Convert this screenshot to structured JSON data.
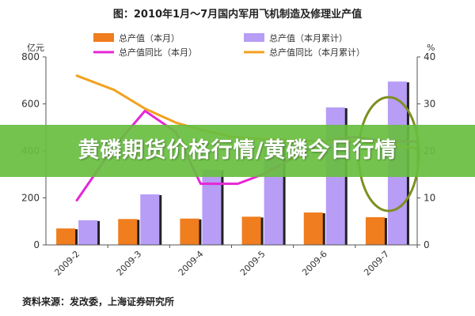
{
  "banner": {
    "text": "黄磷期货价格行情/黄磷今日行情"
  },
  "chart_data": {
    "type": "bar",
    "title": "图：2010年1月～7月国内军用飞机制造及修理业产值",
    "source": "资料来源：发改委，上海证券研究所",
    "ylabel_left": "亿元",
    "ylabel_right": "%",
    "ylim_left": [
      0,
      800
    ],
    "ylim_right": [
      0,
      40
    ],
    "yticks_left": [
      0,
      200,
      400,
      600,
      800
    ],
    "yticks_right": [
      0,
      10,
      20,
      30,
      40
    ],
    "categories": [
      "2009-2",
      "2009-3",
      "2009-4",
      "2009-5",
      "2009-6",
      "2009-7"
    ],
    "bar_series": [
      {
        "name": "总产值（本月）",
        "color": "#f07d1e",
        "values": [
          70,
          110,
          112,
          120,
          138,
          118
        ]
      },
      {
        "name": "总产值（本月累计）",
        "color": "#b79df5",
        "values": [
          105,
          215,
          320,
          440,
          585,
          695
        ]
      }
    ],
    "line_series": [
      {
        "name": "总产值同比（本月）",
        "color": "#e626d6",
        "x": [
          0,
          0.55,
          1.1,
          1.6,
          2.0,
          2.6,
          3.0,
          4.0,
          4.5,
          5.0,
          5.5
        ],
        "values": [
          9.5,
          20,
          28.5,
          24,
          13,
          13,
          15,
          22,
          23,
          22,
          22
        ]
      },
      {
        "name": "总产值同比（本月累计）",
        "color": "#f2a11f",
        "x": [
          0,
          0.6,
          1.1,
          1.6,
          2.0,
          2.5,
          3.0,
          3.5,
          4.0,
          4.5,
          5.0,
          5.5
        ],
        "values": [
          36,
          33,
          29,
          26,
          24.5,
          23,
          22.5,
          22.3,
          22,
          22,
          21.5,
          20.5
        ]
      }
    ],
    "annotation": {
      "type": "ellipse",
      "color": "#7d8f20",
      "category_index": 5
    },
    "grid": false,
    "legend_position": "top"
  }
}
